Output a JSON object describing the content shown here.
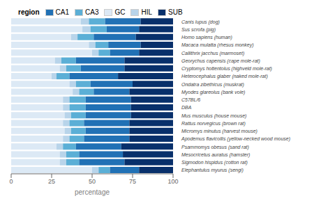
{
  "chart_data": {
    "type": "bar",
    "orientation": "horizontal",
    "stacked": true,
    "xlabel": "percentage",
    "legend_title": "region",
    "legend": "top",
    "grid": false,
    "categories": [
      "Canis lupus (dog)",
      "Sus scrofa (pig)",
      "Homo sapiens (human)",
      "Macaca mulatta (rhesus monkey)",
      "Callithrix jacchus (marmoset)",
      "Georychus capensis (cape mole-rat)",
      "Cryptomys hottentolus (highveld mole-rat)",
      "Heterocephalus glaber (naked mole-rat)",
      "Ondatra zibethicus (muskrat)",
      "Myodes glareolus (bank vole)",
      "C57BL/6",
      "DBA",
      "Mus musculus (house mouse)",
      "Rattus norvegicus (brown rat)",
      "Micromys minutus  (harvest mouse)",
      "Apodemus flavicollis (yellow-necked wood mouse)",
      "Psammomys obesus (sand rat)",
      "Mesocricetus auratus (hamster)",
      "Sigmodon hispidus (cotton rat)",
      "Elephantulus myurus (sengi)"
    ],
    "series": [
      {
        "name": "GC",
        "color": "#dce9f5",
        "values": [
          43,
          44,
          37,
          48,
          50,
          27,
          30,
          25,
          36,
          38,
          32,
          32,
          33,
          32,
          33,
          32,
          28,
          30,
          30,
          50
        ]
      },
      {
        "name": "HIL",
        "color": "#b8d4ea",
        "values": [
          5,
          5,
          4,
          4,
          4,
          4,
          4,
          3,
          4,
          4,
          4,
          4,
          4,
          4,
          4,
          4,
          4,
          4,
          4,
          4
        ]
      },
      {
        "name": "CA3",
        "color": "#5bafd6",
        "values": [
          10,
          10,
          10,
          8,
          7,
          9,
          9,
          8,
          9,
          9,
          10,
          10,
          9,
          9,
          9,
          9,
          8,
          8,
          8,
          7
        ]
      },
      {
        "name": "CA1",
        "color": "#2171b5",
        "values": [
          22,
          20,
          26,
          20,
          18,
          30,
          27,
          30,
          26,
          22,
          28,
          28,
          28,
          28,
          27,
          28,
          28,
          27,
          28,
          18
        ]
      },
      {
        "name": "SUB",
        "color": "#08306b",
        "values": [
          20,
          21,
          23,
          20,
          21,
          30,
          30,
          34,
          25,
          27,
          26,
          26,
          26,
          27,
          27,
          27,
          32,
          31,
          30,
          21
        ]
      }
    ],
    "xlim": [
      0,
      100
    ],
    "xticks": [
      0,
      25,
      50,
      75,
      100
    ]
  }
}
